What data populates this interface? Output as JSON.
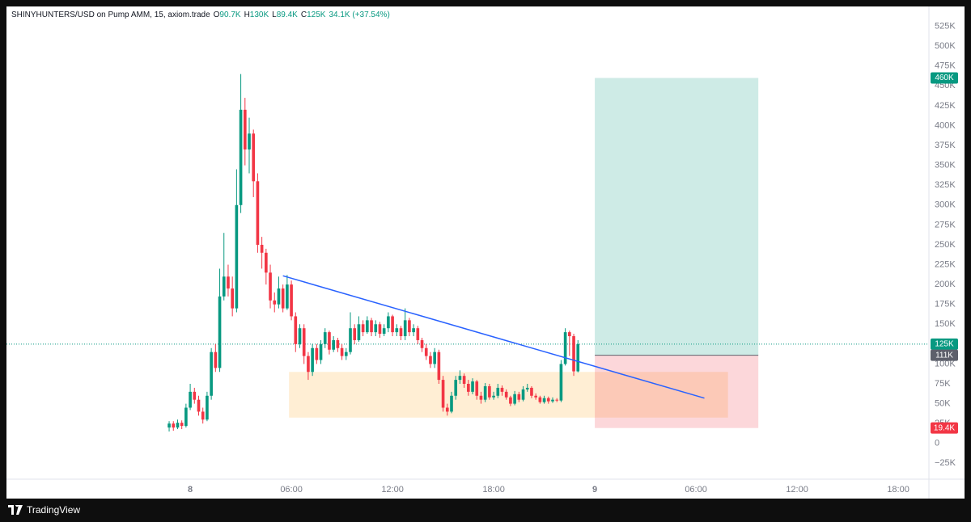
{
  "header": {
    "symbol": "SHINYHUNTERS/USD on Pump AMM, 15, axiom.trade",
    "fields": [
      {
        "key": "O",
        "value": "90.7K"
      },
      {
        "key": "H",
        "value": "130K"
      },
      {
        "key": "L",
        "value": "89.4K"
      },
      {
        "key": "C",
        "value": "125K"
      }
    ],
    "change": "34.1K (+37.54%)"
  },
  "footer": {
    "brand": "TradingView"
  },
  "chart_data": {
    "type": "candlestick",
    "x": [
      -1.25,
      -1,
      -0.75,
      -0.5,
      -0.25,
      0,
      0.25,
      0.5,
      0.75,
      1,
      1.25,
      1.5,
      1.75,
      2,
      2.25,
      2.5,
      2.75,
      3,
      3.25,
      3.5,
      3.75,
      4,
      4.25,
      4.5,
      4.75,
      5,
      5.25,
      5.5,
      5.75,
      6,
      6.25,
      6.5,
      6.75,
      7,
      7.25,
      7.5,
      7.75,
      8,
      8.25,
      8.5,
      8.75,
      9,
      9.25,
      9.5,
      9.75,
      10,
      10.25,
      10.5,
      10.75,
      11,
      11.25,
      11.5,
      11.75,
      12,
      12.25,
      12.5,
      12.75,
      13,
      13.25,
      13.5,
      13.75,
      14,
      14.25,
      14.5,
      14.75,
      15,
      15.25,
      15.5,
      15.75,
      16,
      16.25,
      16.5,
      16.75,
      17,
      17.25,
      17.5,
      17.75,
      18,
      18.25,
      18.5,
      18.75,
      19,
      19.25,
      19.5,
      19.75,
      20,
      20.25,
      20.5,
      20.75,
      21,
      21.25,
      21.5,
      21.75,
      22,
      22.25,
      22.5,
      22.75,
      23
    ],
    "open": [
      20000,
      25000,
      20000,
      26000,
      22000,
      45000,
      65000,
      55000,
      40000,
      30000,
      60000,
      115000,
      95000,
      185000,
      210000,
      195000,
      170000,
      300000,
      420000,
      370000,
      390000,
      330000,
      250000,
      240000,
      215000,
      180000,
      175000,
      195000,
      170000,
      200000,
      160000,
      125000,
      145000,
      110000,
      90000,
      120000,
      105000,
      125000,
      140000,
      118000,
      130000,
      120000,
      110000,
      115000,
      145000,
      130000,
      150000,
      140000,
      155000,
      140000,
      150000,
      138000,
      145000,
      160000,
      140000,
      145000,
      135000,
      155000,
      140000,
      145000,
      130000,
      120000,
      110000,
      100000,
      115000,
      80000,
      45000,
      40000,
      60000,
      80000,
      85000,
      75000,
      65000,
      78000,
      60000,
      55000,
      72000,
      58000,
      60000,
      70000,
      65000,
      58000,
      50000,
      62000,
      55000,
      68000,
      70000,
      60000,
      58000,
      52000,
      57000,
      53000,
      55000,
      54000,
      100000,
      140000,
      135000,
      90700
    ],
    "high": [
      28000,
      28000,
      30000,
      29000,
      50000,
      75000,
      70000,
      60000,
      45000,
      65000,
      120000,
      125000,
      220000,
      265000,
      225000,
      210000,
      345000,
      465000,
      435000,
      410000,
      395000,
      340000,
      260000,
      245000,
      225000,
      190000,
      210000,
      200000,
      212000,
      205000,
      165000,
      150000,
      150000,
      115000,
      125000,
      125000,
      130000,
      145000,
      142000,
      135000,
      133000,
      125000,
      120000,
      165000,
      150000,
      160000,
      155000,
      160000,
      158000,
      155000,
      153000,
      150000,
      165000,
      162000,
      150000,
      148000,
      170000,
      158000,
      150000,
      148000,
      133000,
      125000,
      115000,
      120000,
      118000,
      85000,
      50000,
      65000,
      85000,
      92000,
      88000,
      80000,
      82000,
      80000,
      65000,
      76000,
      75000,
      65000,
      75000,
      73000,
      68000,
      60000,
      66000,
      65000,
      72000,
      75000,
      72000,
      63000,
      60000,
      60000,
      59000,
      58000,
      57000,
      105000,
      145000,
      142000,
      138000,
      130000
    ],
    "low": [
      15000,
      16000,
      18000,
      18000,
      20000,
      42000,
      50000,
      35000,
      25000,
      28000,
      55000,
      90000,
      90000,
      180000,
      185000,
      160000,
      165000,
      290000,
      350000,
      340000,
      310000,
      240000,
      220000,
      200000,
      170000,
      165000,
      170000,
      165000,
      168000,
      155000,
      115000,
      120000,
      100000,
      80000,
      85000,
      100000,
      100000,
      120000,
      112000,
      115000,
      115000,
      105000,
      105000,
      112000,
      125000,
      128000,
      135000,
      138000,
      135000,
      135000,
      133000,
      135000,
      140000,
      135000,
      135000,
      130000,
      130000,
      135000,
      135000,
      125000,
      115000,
      105000,
      95000,
      95000,
      75000,
      40000,
      35000,
      38000,
      55000,
      75000,
      70000,
      60000,
      62000,
      55000,
      50000,
      52000,
      55000,
      55000,
      57000,
      60000,
      55000,
      47000,
      48000,
      52000,
      53000,
      65000,
      57000,
      55000,
      50000,
      50000,
      50000,
      51000,
      52000,
      52000,
      98000,
      110000,
      85000,
      89400
    ],
    "close": [
      25000,
      20000,
      26000,
      22000,
      45000,
      65000,
      55000,
      40000,
      30000,
      60000,
      115000,
      95000,
      185000,
      210000,
      195000,
      170000,
      300000,
      420000,
      370000,
      390000,
      330000,
      250000,
      240000,
      215000,
      180000,
      175000,
      195000,
      170000,
      200000,
      160000,
      125000,
      145000,
      110000,
      90000,
      120000,
      105000,
      125000,
      140000,
      118000,
      130000,
      120000,
      110000,
      115000,
      145000,
      130000,
      150000,
      140000,
      155000,
      140000,
      150000,
      138000,
      145000,
      160000,
      140000,
      145000,
      135000,
      155000,
      140000,
      145000,
      130000,
      120000,
      110000,
      100000,
      115000,
      80000,
      45000,
      40000,
      60000,
      80000,
      85000,
      75000,
      65000,
      78000,
      60000,
      55000,
      72000,
      58000,
      60000,
      70000,
      65000,
      58000,
      50000,
      62000,
      55000,
      68000,
      70000,
      60000,
      58000,
      52000,
      57000,
      53000,
      55000,
      54000,
      100000,
      140000,
      135000,
      90700,
      125000
    ],
    "colors": {
      "up": "#089981",
      "down": "#f23645"
    },
    "xlim": [
      -10.9,
      43.82
    ],
    "xticks": [
      {
        "value": 0,
        "label": "8"
      },
      {
        "value": 6,
        "label": "06:00"
      },
      {
        "value": 12,
        "label": "12:00"
      },
      {
        "value": 18,
        "label": "18:00"
      },
      {
        "value": 24,
        "label": "9"
      },
      {
        "value": 30,
        "label": "06:00"
      },
      {
        "value": 36,
        "label": "12:00"
      },
      {
        "value": 42,
        "label": "18:00"
      }
    ],
    "ylim": [
      -45000,
      550000
    ],
    "yticks": [
      {
        "value": -25000,
        "label": "−25K"
      },
      0,
      {
        "value": 25000,
        "label": "25K"
      },
      {
        "value": 50000,
        "label": "50K"
      },
      {
        "value": 75000,
        "label": "75K"
      },
      {
        "value": 100000,
        "label": "100K"
      },
      {
        "value": 125000,
        "label": "125K"
      },
      {
        "value": 150000,
        "label": "150K"
      },
      {
        "value": 175000,
        "label": "175K"
      },
      {
        "value": 200000,
        "label": "200K"
      },
      {
        "value": 225000,
        "label": "225K"
      },
      {
        "value": 250000,
        "label": "250K"
      },
      {
        "value": 275000,
        "label": "275K"
      },
      {
        "value": 300000,
        "label": "300K"
      },
      {
        "value": 325000,
        "label": "325K"
      },
      {
        "value": 350000,
        "label": "350K"
      },
      {
        "value": 375000,
        "label": "375K"
      },
      {
        "value": 400000,
        "label": "400K"
      },
      {
        "value": 425000,
        "label": "425K"
      },
      {
        "value": 450000,
        "label": "450K"
      },
      {
        "value": 475000,
        "label": "475K"
      },
      {
        "value": 500000,
        "label": "500K"
      },
      {
        "value": 525000,
        "label": "525K"
      }
    ],
    "grid": false,
    "zone": {
      "x": [
        5.86,
        31.9
      ],
      "y": [
        32500,
        90000
      ],
      "color": "rgba(255,152,0,0.17)"
    },
    "trendline": {
      "x": [
        5.5,
        30.5
      ],
      "y": [
        211000,
        57000
      ],
      "color": "#2962ff"
    },
    "position": {
      "x": [
        24,
        33.7
      ],
      "target": {
        "value": 460000,
        "label": "460K"
      },
      "entry": {
        "value": 111000,
        "label": "111K"
      },
      "stop": {
        "value": 19400,
        "label": "19.4K"
      },
      "target_color": "rgba(8,153,129,0.2)",
      "stop_color": "rgba(242,54,69,0.2)",
      "entry_color": "#5d606b"
    },
    "last_price": {
      "value": 125000,
      "label": "125K"
    }
  }
}
